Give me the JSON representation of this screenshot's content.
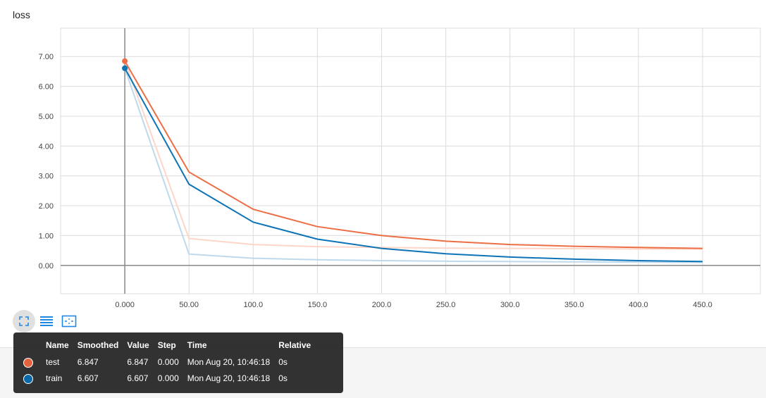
{
  "card": {
    "title": "loss"
  },
  "chart_data": {
    "type": "line",
    "title": "loss",
    "xlabel": "",
    "ylabel": "",
    "xlim": [
      -50,
      495
    ],
    "ylim": [
      -0.95,
      7.95
    ],
    "x_ticks": [
      "0.000",
      "50.00",
      "100.0",
      "150.0",
      "200.0",
      "250.0",
      "300.0",
      "350.0",
      "400.0",
      "450.0"
    ],
    "y_ticks": [
      "0.00",
      "1.00",
      "2.00",
      "3.00",
      "4.00",
      "5.00",
      "6.00",
      "7.00"
    ],
    "grid": true,
    "series": [
      {
        "name": "test",
        "color": "#ec6e44",
        "raw_color": "#fdd6c8",
        "x": [
          0,
          50,
          100,
          150,
          200,
          250,
          300,
          350,
          400,
          450
        ],
        "smoothed": [
          6.847,
          3.13,
          1.88,
          1.3,
          1.0,
          0.81,
          0.7,
          0.64,
          0.6,
          0.57
        ],
        "raw": [
          6.847,
          0.9,
          0.7,
          0.63,
          0.6,
          0.58,
          0.57,
          0.56,
          0.55,
          0.55
        ]
      },
      {
        "name": "train",
        "color": "#0d73b7",
        "raw_color": "#bed9ec",
        "x": [
          0,
          50,
          100,
          150,
          200,
          250,
          300,
          350,
          400,
          450
        ],
        "smoothed": [
          6.607,
          2.72,
          1.45,
          0.88,
          0.57,
          0.39,
          0.28,
          0.21,
          0.16,
          0.13
        ],
        "raw": [
          6.607,
          0.38,
          0.24,
          0.19,
          0.16,
          0.14,
          0.13,
          0.12,
          0.11,
          0.1
        ]
      }
    ]
  },
  "toolbar": {
    "items": [
      {
        "icon": "fit-domain-icon",
        "active": true
      },
      {
        "icon": "toggle-log-list-icon",
        "active": false
      },
      {
        "icon": "reset-zoom-icon",
        "active": false
      }
    ]
  },
  "tooltip": {
    "headers": [
      "Name",
      "Smoothed",
      "Value",
      "Step",
      "Time",
      "Relative"
    ],
    "rows": [
      {
        "name": "test",
        "smoothed": "6.847",
        "value": "6.847",
        "step": "0.000",
        "time": "Mon Aug 20, 10:46:18",
        "relative": "0s",
        "color": "#e2633d"
      },
      {
        "name": "train",
        "smoothed": "6.607",
        "value": "6.607",
        "step": "0.000",
        "time": "Mon Aug 20, 10:46:18",
        "relative": "0s",
        "color": "#0a69a8"
      }
    ]
  }
}
